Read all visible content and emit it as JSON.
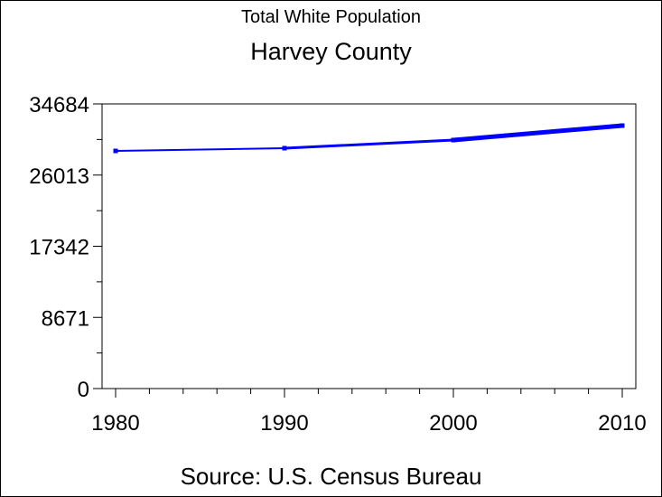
{
  "chart_data": {
    "type": "line",
    "title": "Total White Population",
    "subtitle": "Harvey County",
    "footnote": "Source: U.S. Census Bureau",
    "x": [
      1980,
      1990,
      2000,
      2010
    ],
    "series": [
      {
        "values": [
          28958,
          29289,
          30280,
          32041
        ],
        "color": "#0000ff"
      }
    ],
    "xlim": [
      1979.2,
      2010.8
    ],
    "ylim": [
      0,
      34684
    ],
    "xticks": [
      "1980",
      "1990",
      "2000",
      "2010"
    ],
    "yticks": [
      "0",
      "8671",
      "17342",
      "26013",
      "34684"
    ],
    "grid": false
  }
}
